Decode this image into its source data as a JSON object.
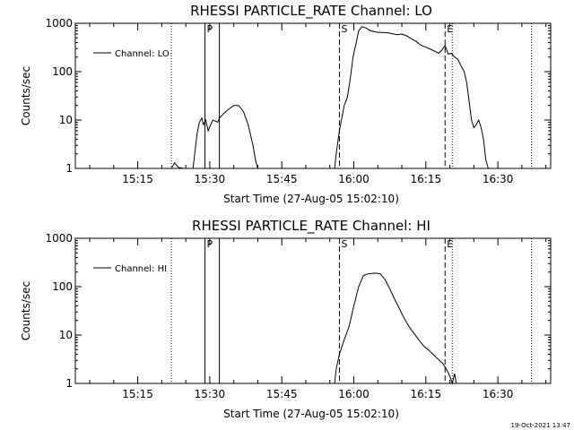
{
  "footer": {
    "timestamp": "19-Oct-2021 13:47"
  },
  "chart_data": [
    {
      "type": "line",
      "title": "RHESSI PARTICLE_RATE Channel: LO",
      "xlabel": "Start Time (27-Aug-05 15:02:10)",
      "ylabel": "Counts/sec",
      "y_scale": "log",
      "ylim": [
        1,
        1000
      ],
      "y_ticks": [
        "1",
        "10",
        "100",
        "1000"
      ],
      "xlim": [
        "15:02",
        "16:41"
      ],
      "x_ticks": [
        "15:15",
        "15:30",
        "15:45",
        "16:00",
        "16:15",
        "16:30"
      ],
      "legend": {
        "placement": "top-left",
        "entries": [
          "Channel: LO"
        ]
      },
      "markers": [
        {
          "label": "P",
          "time": "15:29:00",
          "style": "solid"
        },
        {
          "label": "",
          "time": "15:32:00",
          "style": "solid"
        },
        {
          "label": "S",
          "time": "15:57:00",
          "style": "dashed"
        },
        {
          "label": "E",
          "time": "16:19:00",
          "style": "dashed"
        },
        {
          "label": "",
          "time": "15:22:00",
          "style": "dotted"
        },
        {
          "label": "",
          "time": "16:20:30",
          "style": "dotted"
        },
        {
          "label": "",
          "time": "16:37:00",
          "style": "dotted"
        }
      ],
      "series": [
        {
          "name": "Channel: LO",
          "segments": [
            [
              [
                "15:22:00",
                1
              ],
              [
                "15:22:40",
                1.3
              ],
              [
                "15:23:30",
                1.05
              ],
              [
                "15:24:30",
                1
              ],
              [
                "15:26:30",
                1
              ],
              [
                "15:27:20",
                5
              ],
              [
                "15:27:50",
                9
              ],
              [
                "15:28:20",
                11
              ],
              [
                "15:28:40",
                8
              ],
              [
                "15:29:10",
                10
              ],
              [
                "15:29:40",
                6
              ],
              [
                "15:30:10",
                8
              ],
              [
                "15:30:40",
                10
              ],
              [
                "15:31:40",
                9
              ],
              [
                "15:32:00",
                11
              ],
              [
                "15:33:00",
                14
              ],
              [
                "15:34:00",
                17
              ],
              [
                "15:35:00",
                20
              ],
              [
                "15:36:00",
                20
              ],
              [
                "15:37:00",
                15
              ],
              [
                "15:38:00",
                8
              ],
              [
                "15:39:00",
                3
              ],
              [
                "15:39:30",
                1.5
              ],
              [
                "15:40:00",
                1
              ]
            ],
            [
              [
                "15:56:00",
                1
              ],
              [
                "15:56:20",
                2
              ],
              [
                "15:57:00",
                6
              ],
              [
                "15:58:00",
                20
              ],
              [
                "15:58:40",
                30
              ],
              [
                "15:59:20",
                80
              ],
              [
                "15:59:50",
                200
              ],
              [
                "16:00:30",
                400
              ],
              [
                "16:01:00",
                700
              ],
              [
                "16:01:40",
                850
              ],
              [
                "16:02:30",
                800
              ],
              [
                "16:03:30",
                700
              ],
              [
                "16:05:00",
                650
              ],
              [
                "16:07:00",
                640
              ],
              [
                "16:09:00",
                580
              ],
              [
                "16:10:00",
                600
              ],
              [
                "16:11:00",
                550
              ],
              [
                "16:12:00",
                480
              ],
              [
                "16:13:00",
                420
              ],
              [
                "16:14:00",
                350
              ],
              [
                "16:15:00",
                320
              ],
              [
                "16:16:00",
                290
              ],
              [
                "16:17:00",
                260
              ],
              [
                "16:17:40",
                240
              ],
              [
                "16:18:20",
                280
              ],
              [
                "16:19:00",
                350
              ],
              [
                "16:19:40",
                230
              ],
              [
                "16:20:20",
                240
              ],
              [
                "16:21:00",
                200
              ],
              [
                "16:21:40",
                180
              ],
              [
                "16:22:20",
                130
              ],
              [
                "16:23:00",
                100
              ],
              [
                "16:23:30",
                60
              ],
              [
                "16:24:00",
                25
              ],
              [
                "16:24:30",
                10
              ],
              [
                "16:25:00",
                7
              ],
              [
                "16:25:30",
                8
              ],
              [
                "16:26:00",
                10
              ],
              [
                "16:26:30",
                7
              ],
              [
                "16:27:00",
                4
              ],
              [
                "16:27:30",
                1.5
              ],
              [
                "16:28:00",
                1
              ]
            ]
          ]
        }
      ]
    },
    {
      "type": "line",
      "title": "RHESSI PARTICLE_RATE Channel: HI",
      "xlabel": "Start Time (27-Aug-05 15:02:10)",
      "ylabel": "Counts/sec",
      "y_scale": "log",
      "ylim": [
        1,
        1000
      ],
      "y_ticks": [
        "1",
        "10",
        "100",
        "1000"
      ],
      "xlim": [
        "15:02",
        "16:41"
      ],
      "x_ticks": [
        "15:15",
        "15:30",
        "15:45",
        "16:00",
        "16:15",
        "16:30"
      ],
      "legend": {
        "placement": "top-left",
        "entries": [
          "Channel: HI"
        ]
      },
      "markers": [
        {
          "label": "P",
          "time": "15:29:00",
          "style": "solid"
        },
        {
          "label": "",
          "time": "15:32:00",
          "style": "solid"
        },
        {
          "label": "S",
          "time": "15:57:00",
          "style": "dashed"
        },
        {
          "label": "E",
          "time": "16:19:00",
          "style": "dashed"
        },
        {
          "label": "",
          "time": "15:22:00",
          "style": "dotted"
        },
        {
          "label": "",
          "time": "16:20:30",
          "style": "dotted"
        },
        {
          "label": "",
          "time": "16:37:00",
          "style": "dotted"
        }
      ],
      "series": [
        {
          "name": "Channel: HI",
          "segments": [
            [
              [
                "15:56:00",
                1
              ],
              [
                "15:56:20",
                2
              ],
              [
                "15:57:00",
                4
              ],
              [
                "15:58:00",
                8
              ],
              [
                "15:59:00",
                15
              ],
              [
                "16:00:00",
                40
              ],
              [
                "16:01:00",
                100
              ],
              [
                "16:02:00",
                170
              ],
              [
                "16:03:00",
                185
              ],
              [
                "16:04:30",
                190
              ],
              [
                "16:05:30",
                185
              ],
              [
                "16:06:30",
                140
              ],
              [
                "16:07:30",
                90
              ],
              [
                "16:08:30",
                55
              ],
              [
                "16:09:30",
                35
              ],
              [
                "16:10:30",
                22
              ],
              [
                "16:11:30",
                15
              ],
              [
                "16:12:30",
                11
              ],
              [
                "16:13:30",
                8
              ],
              [
                "16:14:30",
                6
              ],
              [
                "16:15:30",
                5
              ],
              [
                "16:16:30",
                4
              ],
              [
                "16:17:30",
                3.2
              ],
              [
                "16:18:30",
                2.6
              ],
              [
                "16:19:00",
                2.2
              ],
              [
                "16:19:30",
                1.8
              ],
              [
                "16:20:00",
                1.4
              ],
              [
                "16:20:30",
                1
              ],
              [
                "16:21:00",
                1.6
              ],
              [
                "16:21:20",
                1
              ]
            ]
          ]
        }
      ]
    }
  ]
}
